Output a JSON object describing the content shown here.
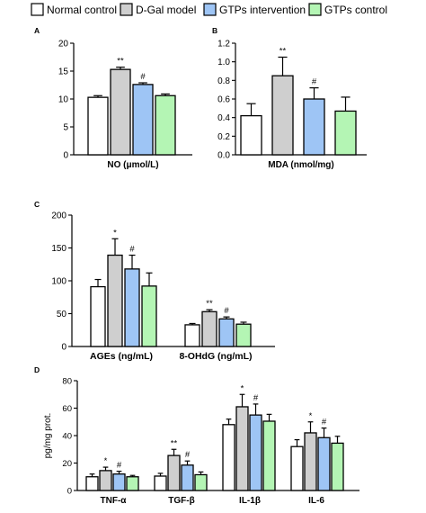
{
  "legend": [
    {
      "name": "Normal control",
      "color": "#ffffff"
    },
    {
      "name": "D-Gal model",
      "color": "#cfcfcf"
    },
    {
      "name": "GTPs intervention",
      "color": "#9ec5f5"
    },
    {
      "name": "GTPs control",
      "color": "#b4f5b4"
    }
  ],
  "chart_data": [
    {
      "panel": "A",
      "type": "bar",
      "xlabel": "NO (μmol/L)",
      "ylabel": "",
      "ylim": [
        0,
        20
      ],
      "yticks": [
        0,
        5,
        10,
        15,
        20
      ],
      "categories": [
        ""
      ],
      "series": [
        {
          "name": "Normal control",
          "values": [
            10.3
          ],
          "errors": [
            0.3
          ]
        },
        {
          "name": "D-Gal model",
          "values": [
            15.3
          ],
          "errors": [
            0.4
          ],
          "annotation": "**"
        },
        {
          "name": "GTPs intervention",
          "values": [
            12.6
          ],
          "errors": [
            0.3
          ],
          "annotation": "#"
        },
        {
          "name": "GTPs control",
          "values": [
            10.6
          ],
          "errors": [
            0.3
          ]
        }
      ]
    },
    {
      "panel": "B",
      "type": "bar",
      "xlabel": "MDA (nmol/mg)",
      "ylabel": "",
      "ylim": [
        0,
        1.2
      ],
      "yticks": [
        "0.0",
        "0.2",
        "0.4",
        "0.6",
        "0.8",
        "1.0",
        "1.2"
      ],
      "categories": [
        ""
      ],
      "series": [
        {
          "name": "Normal control",
          "values": [
            0.42
          ],
          "errors": [
            0.13
          ]
        },
        {
          "name": "D-Gal model",
          "values": [
            0.85
          ],
          "errors": [
            0.2
          ],
          "annotation": "**"
        },
        {
          "name": "GTPs intervention",
          "values": [
            0.6
          ],
          "errors": [
            0.12
          ],
          "annotation": "#"
        },
        {
          "name": "GTPs control",
          "values": [
            0.47
          ],
          "errors": [
            0.15
          ]
        }
      ]
    },
    {
      "panel": "C",
      "type": "bar",
      "xlabel": "",
      "ylabel": "",
      "ylim": [
        0,
        200
      ],
      "yticks": [
        0,
        50,
        100,
        150,
        200
      ],
      "categories": [
        "AGEs (ng/mL)",
        "8-OHdG (ng/mL)"
      ],
      "series": [
        {
          "name": "Normal control",
          "values": [
            91,
            33
          ],
          "errors": [
            11,
            2
          ]
        },
        {
          "name": "D-Gal model",
          "values": [
            139,
            53
          ],
          "errors": [
            25,
            3
          ],
          "annotations": [
            "*",
            "**"
          ]
        },
        {
          "name": "GTPs intervention",
          "values": [
            118,
            42
          ],
          "errors": [
            21,
            3
          ],
          "annotations": [
            "#",
            "#"
          ]
        },
        {
          "name": "GTPs control",
          "values": [
            92,
            34
          ],
          "errors": [
            20,
            3
          ]
        }
      ]
    },
    {
      "panel": "D",
      "type": "bar",
      "xlabel": "",
      "ylabel": "pg/mg prot.",
      "ylim": [
        0,
        80
      ],
      "yticks": [
        0,
        20,
        40,
        60,
        80
      ],
      "categories": [
        "TNF-α",
        "TGF-β",
        "IL-1β",
        "IL-6"
      ],
      "series": [
        {
          "name": "Normal control",
          "values": [
            10,
            10.5,
            48,
            32
          ],
          "errors": [
            2,
            2,
            4,
            5
          ]
        },
        {
          "name": "D-Gal model",
          "values": [
            14.5,
            25.5,
            61,
            42
          ],
          "errors": [
            2.5,
            4.5,
            9,
            8
          ],
          "annotations": [
            "*",
            "**",
            "*",
            "*"
          ]
        },
        {
          "name": "GTPs intervention",
          "values": [
            12,
            18.5,
            55,
            38.5
          ],
          "errors": [
            2,
            3,
            8,
            7
          ],
          "annotations": [
            "#",
            "#",
            "#",
            "#"
          ]
        },
        {
          "name": "GTPs control",
          "values": [
            10,
            11.5,
            50.5,
            34.5
          ],
          "errors": [
            1,
            2,
            5,
            5
          ]
        }
      ]
    }
  ]
}
